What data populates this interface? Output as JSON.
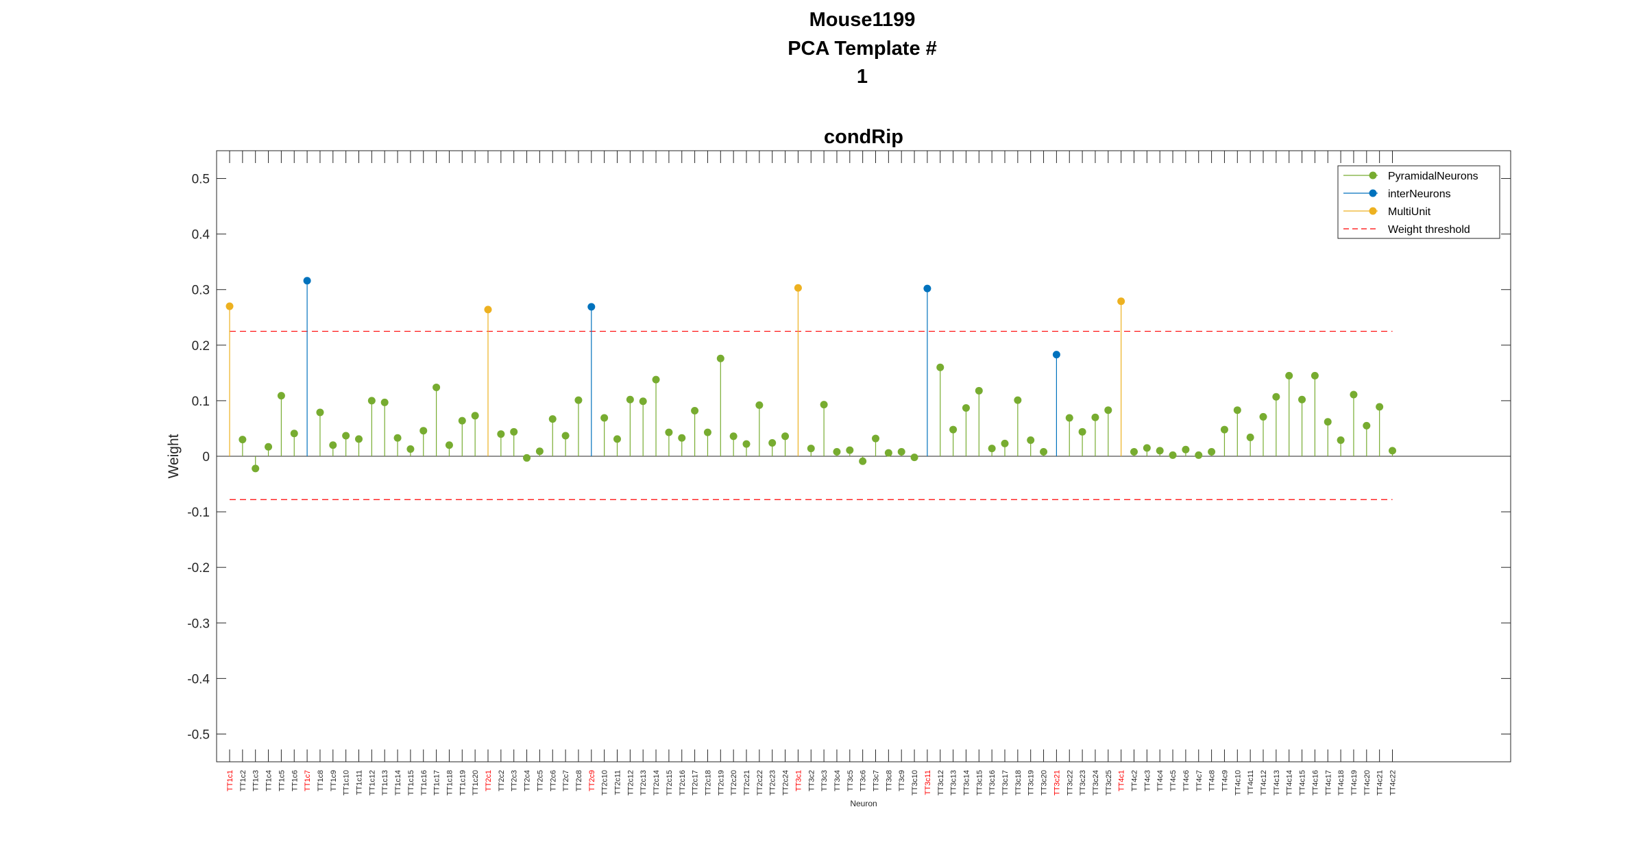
{
  "title_lines": [
    "Mouse1199",
    "PCA Template #",
    "1"
  ],
  "chart_data": {
    "type": "stem",
    "title": "condRip",
    "xlabel": "Neuron",
    "ylabel": "Weight",
    "ylim": [
      -0.55,
      0.55
    ],
    "yticks": [
      "0.5",
      "0.4",
      "0.3",
      "0.2",
      "0.1",
      "0",
      "-0.1",
      "-0.2",
      "-0.3",
      "-0.4",
      "-0.5"
    ],
    "threshold_upper": 0.225,
    "threshold_lower": -0.078,
    "legend": {
      "placement": "top-right",
      "entries": [
        "PyramidalNeurons",
        "interNeurons",
        "MultiUnit",
        "Weight threshold"
      ]
    },
    "colors": {
      "pyr": "#77ac30",
      "int": "#0072bd",
      "mu": "#edb120",
      "threshold": "#ff0000",
      "axis": "#262626"
    },
    "neurons": [
      {
        "label": "TT1c1",
        "type": "mu",
        "value": 0.27
      },
      {
        "label": "TT1c2",
        "type": "pyr",
        "value": 0.03
      },
      {
        "label": "TT1c3",
        "type": "pyr",
        "value": -0.022
      },
      {
        "label": "TT1c4",
        "type": "pyr",
        "value": 0.017
      },
      {
        "label": "TT1c5",
        "type": "pyr",
        "value": 0.109
      },
      {
        "label": "TT1c6",
        "type": "pyr",
        "value": 0.041
      },
      {
        "label": "TT1c7",
        "type": "int",
        "value": 0.316
      },
      {
        "label": "TT1c8",
        "type": "pyr",
        "value": 0.079
      },
      {
        "label": "TT1c9",
        "type": "pyr",
        "value": 0.02
      },
      {
        "label": "TT1c10",
        "type": "pyr",
        "value": 0.037
      },
      {
        "label": "TT1c11",
        "type": "pyr",
        "value": 0.031
      },
      {
        "label": "TT1c12",
        "type": "pyr",
        "value": 0.1
      },
      {
        "label": "TT1c13",
        "type": "pyr",
        "value": 0.097
      },
      {
        "label": "TT1c14",
        "type": "pyr",
        "value": 0.033
      },
      {
        "label": "TT1c15",
        "type": "pyr",
        "value": 0.013
      },
      {
        "label": "TT1c16",
        "type": "pyr",
        "value": 0.046
      },
      {
        "label": "TT1c17",
        "type": "pyr",
        "value": 0.124
      },
      {
        "label": "TT1c18",
        "type": "pyr",
        "value": 0.02
      },
      {
        "label": "TT1c19",
        "type": "pyr",
        "value": 0.064
      },
      {
        "label": "TT1c20",
        "type": "pyr",
        "value": 0.073
      },
      {
        "label": "TT2c1",
        "type": "mu",
        "value": 0.264
      },
      {
        "label": "TT2c2",
        "type": "pyr",
        "value": 0.04
      },
      {
        "label": "TT2c3",
        "type": "pyr",
        "value": 0.044
      },
      {
        "label": "TT2c4",
        "type": "pyr",
        "value": -0.003
      },
      {
        "label": "TT2c5",
        "type": "pyr",
        "value": 0.009
      },
      {
        "label": "TT2c6",
        "type": "pyr",
        "value": 0.067
      },
      {
        "label": "TT2c7",
        "type": "pyr",
        "value": 0.037
      },
      {
        "label": "TT2c8",
        "type": "pyr",
        "value": 0.101
      },
      {
        "label": "TT2c9",
        "type": "int",
        "value": 0.269
      },
      {
        "label": "TT2c10",
        "type": "pyr",
        "value": 0.069
      },
      {
        "label": "TT2c11",
        "type": "pyr",
        "value": 0.031
      },
      {
        "label": "TT2c12",
        "type": "pyr",
        "value": 0.102
      },
      {
        "label": "TT2c13",
        "type": "pyr",
        "value": 0.099
      },
      {
        "label": "TT2c14",
        "type": "pyr",
        "value": 0.138
      },
      {
        "label": "TT2c15",
        "type": "pyr",
        "value": 0.043
      },
      {
        "label": "TT2c16",
        "type": "pyr",
        "value": 0.033
      },
      {
        "label": "TT2c17",
        "type": "pyr",
        "value": 0.082
      },
      {
        "label": "TT2c18",
        "type": "pyr",
        "value": 0.043
      },
      {
        "label": "TT2c19",
        "type": "pyr",
        "value": 0.176
      },
      {
        "label": "TT2c20",
        "type": "pyr",
        "value": 0.036
      },
      {
        "label": "TT2c21",
        "type": "pyr",
        "value": 0.022
      },
      {
        "label": "TT2c22",
        "type": "pyr",
        "value": 0.092
      },
      {
        "label": "TT2c23",
        "type": "pyr",
        "value": 0.024
      },
      {
        "label": "TT2c24",
        "type": "pyr",
        "value": 0.036
      },
      {
        "label": "TT3c1",
        "type": "mu",
        "value": 0.303
      },
      {
        "label": "TT3c2",
        "type": "pyr",
        "value": 0.014
      },
      {
        "label": "TT3c3",
        "type": "pyr",
        "value": 0.093
      },
      {
        "label": "TT3c4",
        "type": "pyr",
        "value": 0.008
      },
      {
        "label": "TT3c5",
        "type": "pyr",
        "value": 0.011
      },
      {
        "label": "TT3c6",
        "type": "pyr",
        "value": -0.009
      },
      {
        "label": "TT3c7",
        "type": "pyr",
        "value": 0.032
      },
      {
        "label": "TT3c8",
        "type": "pyr",
        "value": 0.006
      },
      {
        "label": "TT3c9",
        "type": "pyr",
        "value": 0.008
      },
      {
        "label": "TT3c10",
        "type": "pyr",
        "value": -0.002
      },
      {
        "label": "TT3c11",
        "type": "int",
        "value": 0.302
      },
      {
        "label": "TT3c12",
        "type": "pyr",
        "value": 0.16
      },
      {
        "label": "TT3c13",
        "type": "pyr",
        "value": 0.048
      },
      {
        "label": "TT3c14",
        "type": "pyr",
        "value": 0.087
      },
      {
        "label": "TT3c15",
        "type": "pyr",
        "value": 0.118
      },
      {
        "label": "TT3c16",
        "type": "pyr",
        "value": 0.014
      },
      {
        "label": "TT3c17",
        "type": "pyr",
        "value": 0.023
      },
      {
        "label": "TT3c18",
        "type": "pyr",
        "value": 0.101
      },
      {
        "label": "TT3c19",
        "type": "pyr",
        "value": 0.029
      },
      {
        "label": "TT3c20",
        "type": "pyr",
        "value": 0.008
      },
      {
        "label": "TT3c21",
        "type": "int",
        "value": 0.183
      },
      {
        "label": "TT3c22",
        "type": "pyr",
        "value": 0.069
      },
      {
        "label": "TT3c23",
        "type": "pyr",
        "value": 0.044
      },
      {
        "label": "TT3c24",
        "type": "pyr",
        "value": 0.07
      },
      {
        "label": "TT3c25",
        "type": "pyr",
        "value": 0.083
      },
      {
        "label": "TT4c1",
        "type": "mu",
        "value": 0.279
      },
      {
        "label": "TT4c2",
        "type": "pyr",
        "value": 0.008
      },
      {
        "label": "TT4c3",
        "type": "pyr",
        "value": 0.015
      },
      {
        "label": "TT4c4",
        "type": "pyr",
        "value": 0.01
      },
      {
        "label": "TT4c5",
        "type": "pyr",
        "value": 0.002
      },
      {
        "label": "TT4c6",
        "type": "pyr",
        "value": 0.012
      },
      {
        "label": "TT4c7",
        "type": "pyr",
        "value": 0.002
      },
      {
        "label": "TT4c8",
        "type": "pyr",
        "value": 0.008
      },
      {
        "label": "TT4c9",
        "type": "pyr",
        "value": 0.048
      },
      {
        "label": "TT4c10",
        "type": "pyr",
        "value": 0.083
      },
      {
        "label": "TT4c11",
        "type": "pyr",
        "value": 0.034
      },
      {
        "label": "TT4c12",
        "type": "pyr",
        "value": 0.071
      },
      {
        "label": "TT4c13",
        "type": "pyr",
        "value": 0.107
      },
      {
        "label": "TT4c14",
        "type": "pyr",
        "value": 0.145
      },
      {
        "label": "TT4c15",
        "type": "pyr",
        "value": 0.102
      },
      {
        "label": "TT4c16",
        "type": "pyr",
        "value": 0.145
      },
      {
        "label": "TT4c17",
        "type": "pyr",
        "value": 0.062
      },
      {
        "label": "TT4c18",
        "type": "pyr",
        "value": 0.029
      },
      {
        "label": "TT4c19",
        "type": "pyr",
        "value": 0.111
      },
      {
        "label": "TT4c20",
        "type": "pyr",
        "value": 0.055
      },
      {
        "label": "TT4c21",
        "type": "pyr",
        "value": 0.089
      },
      {
        "label": "TT4c22",
        "type": "pyr",
        "value": 0.01
      }
    ]
  }
}
